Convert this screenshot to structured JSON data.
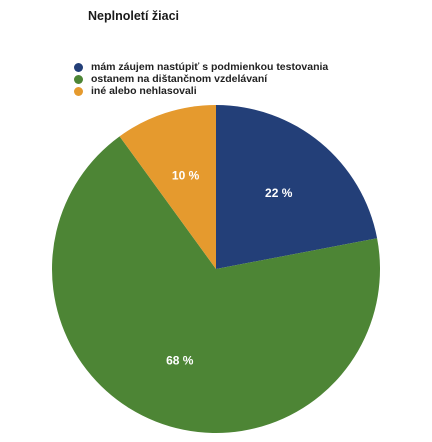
{
  "chart_data": {
    "type": "pie",
    "title": "Neplnoletí žiaci",
    "legend_position": "top-left",
    "categories": [
      "mám záujem nastúpiť s podmienkou testovania",
      "ostanem na dištančnom vzdelávaní",
      "iné alebo nehlasovali"
    ],
    "values": [
      22,
      68,
      10
    ],
    "value_labels": [
      "22 %",
      "68 %",
      "10 %"
    ],
    "colors": [
      "#233f78",
      "#4d8535",
      "#e59a2e"
    ],
    "start_angle_deg": 0,
    "direction": "clockwise"
  }
}
